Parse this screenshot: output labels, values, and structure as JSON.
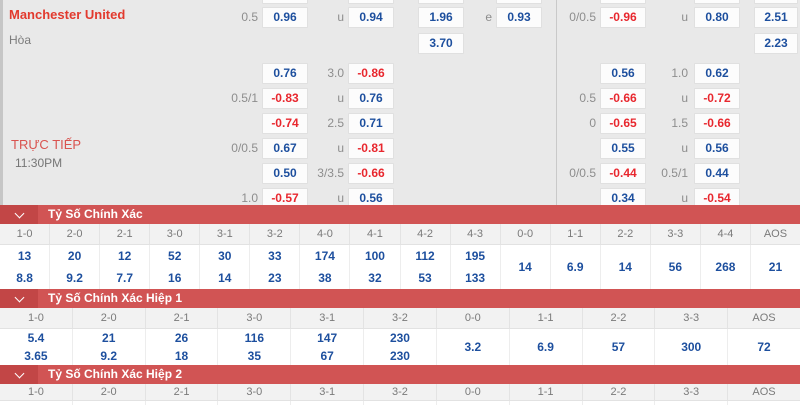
{
  "odds": {
    "home_team": "Manchester United",
    "draw_label": "Hòa",
    "live_label": "TRỰC TIẾP",
    "kickoff_time": "11:30PM",
    "rows": [
      {
        "l": [
          "0.5",
          "0.96",
          "u",
          "0.94",
          "1.96",
          "e",
          "0.93"
        ],
        "r": [
          "0/0.5",
          "-0.96",
          "u",
          "0.80",
          "2.51"
        ]
      },
      {
        "l": [
          "",
          "",
          "",
          "",
          "3.70",
          "",
          ""
        ],
        "r": [
          "",
          "",
          "",
          "",
          "2.23"
        ]
      },
      {
        "l": [
          "",
          "0.76",
          "3.0",
          "-0.86",
          "",
          "",
          ""
        ],
        "r": [
          "",
          "0.56",
          "1.0",
          "0.62",
          ""
        ]
      },
      {
        "l": [
          "0.5/1",
          "-0.83",
          "u",
          "0.76",
          "",
          "",
          ""
        ],
        "r": [
          "0.5",
          "-0.66",
          "u",
          "-0.72",
          ""
        ]
      },
      {
        "l": [
          "",
          "-0.74",
          "2.5",
          "0.71",
          "",
          "",
          ""
        ],
        "r": [
          "0",
          "-0.65",
          "1.5",
          "-0.66",
          ""
        ]
      },
      {
        "l": [
          "0/0.5",
          "0.67",
          "u",
          "-0.81",
          "",
          "",
          ""
        ],
        "r": [
          "",
          "0.55",
          "u",
          "0.56",
          ""
        ]
      },
      {
        "l": [
          "",
          "0.50",
          "3/3.5",
          "-0.66",
          "",
          "",
          ""
        ],
        "r": [
          "0/0.5",
          "-0.44",
          "0.5/1",
          "0.44",
          ""
        ]
      },
      {
        "l": [
          "1.0",
          "-0.57",
          "u",
          "0.56",
          "",
          "",
          ""
        ],
        "r": [
          "",
          "0.34",
          "u",
          "-0.54",
          ""
        ]
      }
    ]
  },
  "score_sections": [
    {
      "title": "Tỷ Số Chính Xác",
      "columns": [
        "1-0",
        "2-0",
        "2-1",
        "3-0",
        "3-1",
        "3-2",
        "4-0",
        "4-1",
        "4-2",
        "4-3",
        "0-0",
        "1-1",
        "2-2",
        "3-3",
        "4-4",
        "AOS"
      ],
      "cells": [
        [
          "13",
          "8.8"
        ],
        [
          "20",
          "9.2"
        ],
        [
          "12",
          "7.7"
        ],
        [
          "52",
          "16"
        ],
        [
          "30",
          "14"
        ],
        [
          "33",
          "23"
        ],
        [
          "174",
          "38"
        ],
        [
          "100",
          "32"
        ],
        [
          "112",
          "53"
        ],
        [
          "195",
          "133"
        ],
        [
          "14"
        ],
        [
          "6.9"
        ],
        [
          "14"
        ],
        [
          "56"
        ],
        [
          "268"
        ],
        [
          "21"
        ]
      ]
    },
    {
      "title": "Tỷ Số Chính Xác Hiệp 1",
      "columns": [
        "1-0",
        "2-0",
        "2-1",
        "3-0",
        "3-1",
        "3-2",
        "0-0",
        "1-1",
        "2-2",
        "3-3",
        "AOS"
      ],
      "cells": [
        [
          "5.4",
          "3.65"
        ],
        [
          "21",
          "9.2"
        ],
        [
          "26",
          "18"
        ],
        [
          "116",
          "35"
        ],
        [
          "147",
          "67"
        ],
        [
          "230",
          "230"
        ],
        [
          "3.2"
        ],
        [
          "6.9"
        ],
        [
          "57"
        ],
        [
          "300"
        ],
        [
          "72"
        ]
      ]
    },
    {
      "title": "Tỷ Số Chính Xác Hiệp 2",
      "columns": [
        "1-0",
        "2-0",
        "2-1",
        "3-0",
        "3-1",
        "3-2",
        "0-0",
        "1-1",
        "2-2",
        "3-3",
        "AOS"
      ],
      "cells": [
        [],
        [],
        [],
        [],
        [],
        [],
        [],
        [],
        [],
        [],
        []
      ]
    }
  ],
  "colors": {
    "value_positive": "#1d4f9e",
    "value_negative": "#e8272e",
    "section_header": "#d15454",
    "section_header_dark": "#c24646",
    "panel_background": "#e9e9e9",
    "home_team_red": "#e23a2e"
  }
}
